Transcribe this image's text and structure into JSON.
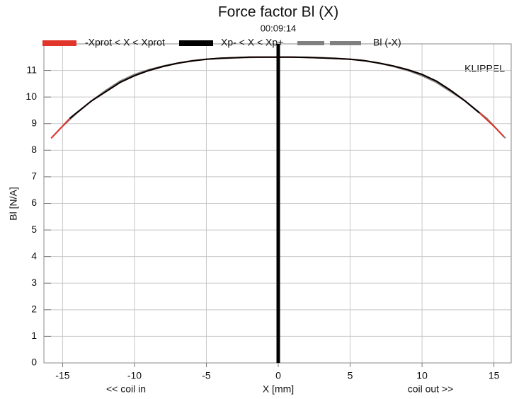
{
  "chart_data": {
    "type": "line",
    "title": "Force factor Bl (X)",
    "subtitle": "00:09:14",
    "x_label": "X [mm]",
    "y_label": "Bl [N/A]",
    "annotations": [
      "KLIPPEL",
      "<< coil in",
      "coil out >>"
    ],
    "xlim": [
      -16.3,
      16.2
    ],
    "ylim": [
      0,
      12
    ],
    "xticks": [
      -15,
      -10,
      -5,
      0,
      5,
      10,
      15
    ],
    "yticks": [
      0,
      1,
      2,
      3,
      4,
      5,
      6,
      7,
      8,
      9,
      10,
      11
    ],
    "grid": true,
    "series": [
      {
        "name": "-Xprot < X < Xprot",
        "color": "#e0352b",
        "dashed": false,
        "x": [
          -15.8,
          -14.5,
          -13,
          -12,
          -11,
          -10,
          -9,
          -8,
          -7,
          -6,
          -5,
          -4,
          -3,
          -2,
          -1,
          0,
          1,
          2,
          3,
          4,
          5,
          6,
          7,
          8,
          9,
          10,
          11,
          12,
          13,
          14,
          15,
          15.7
        ],
        "values": [
          8.45,
          9.2,
          9.85,
          10.2,
          10.55,
          10.8,
          11.0,
          11.15,
          11.27,
          11.36,
          11.42,
          11.46,
          11.48,
          11.5,
          11.5,
          11.5,
          11.5,
          11.49,
          11.47,
          11.45,
          11.42,
          11.37,
          11.28,
          11.17,
          11.03,
          10.85,
          10.6,
          10.25,
          9.85,
          9.4,
          8.9,
          8.5
        ]
      },
      {
        "name": "Xp- < X < Xp+",
        "color": "#000000",
        "dashed": false,
        "x": [
          -14.5,
          -13,
          -12,
          -11,
          -10,
          -9,
          -8,
          -7,
          -6,
          -5,
          -4,
          -3,
          -2,
          -1,
          0,
          1,
          2,
          3,
          4,
          5,
          6,
          7,
          8,
          9,
          10,
          11,
          12,
          13,
          14
        ],
        "values": [
          9.2,
          9.85,
          10.2,
          10.55,
          10.8,
          11.0,
          11.15,
          11.27,
          11.36,
          11.42,
          11.46,
          11.48,
          11.5,
          11.5,
          11.5,
          11.5,
          11.49,
          11.47,
          11.45,
          11.42,
          11.37,
          11.28,
          11.17,
          11.03,
          10.85,
          10.6,
          10.25,
          9.85,
          9.4
        ]
      },
      {
        "name": "Bl (-X)",
        "color": "#808080",
        "dashed": true,
        "x": [
          -15.7,
          -15,
          -14,
          -13,
          -12,
          -11,
          -10,
          -9,
          -8,
          -7,
          -6,
          -5,
          -4,
          -3,
          -2,
          -1,
          0,
          1,
          2,
          3,
          4,
          5,
          6,
          7,
          8,
          9,
          10,
          11,
          12,
          13,
          14.5,
          15.8
        ],
        "values": [
          8.5,
          8.9,
          9.4,
          9.85,
          10.25,
          10.6,
          10.85,
          11.03,
          11.17,
          11.28,
          11.37,
          11.42,
          11.45,
          11.47,
          11.49,
          11.5,
          11.5,
          11.5,
          11.5,
          11.48,
          11.46,
          11.42,
          11.36,
          11.27,
          11.15,
          11.0,
          10.8,
          10.55,
          10.2,
          9.85,
          9.2,
          8.45
        ]
      }
    ]
  }
}
